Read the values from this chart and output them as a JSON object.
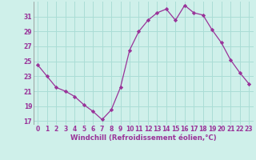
{
  "x": [
    0,
    1,
    2,
    3,
    4,
    5,
    6,
    7,
    8,
    9,
    10,
    11,
    12,
    13,
    14,
    15,
    16,
    17,
    18,
    19,
    20,
    21,
    22,
    23
  ],
  "y": [
    24.5,
    23.0,
    21.5,
    21.0,
    20.3,
    19.2,
    18.3,
    17.2,
    18.5,
    21.5,
    26.5,
    29.0,
    30.5,
    31.5,
    32.0,
    30.5,
    32.5,
    31.5,
    31.2,
    29.2,
    27.5,
    25.2,
    23.5,
    22.0
  ],
  "xlim": [
    -0.5,
    23.5
  ],
  "ylim": [
    16.5,
    33.0
  ],
  "yticks": [
    17,
    19,
    21,
    23,
    25,
    27,
    29,
    31
  ],
  "xticks": [
    0,
    1,
    2,
    3,
    4,
    5,
    6,
    7,
    8,
    9,
    10,
    11,
    12,
    13,
    14,
    15,
    16,
    17,
    18,
    19,
    20,
    21,
    22,
    23
  ],
  "xlabel": "Windchill (Refroidissement éolien,°C)",
  "line_color": "#993399",
  "marker": "D",
  "marker_size": 2.2,
  "bg_color": "#cff0ea",
  "grid_color": "#aaddd6",
  "axis_label_color": "#993399",
  "tick_color": "#993399",
  "tick_fontsize": 5.5,
  "xlabel_fontsize": 6.2,
  "linewidth": 0.9
}
